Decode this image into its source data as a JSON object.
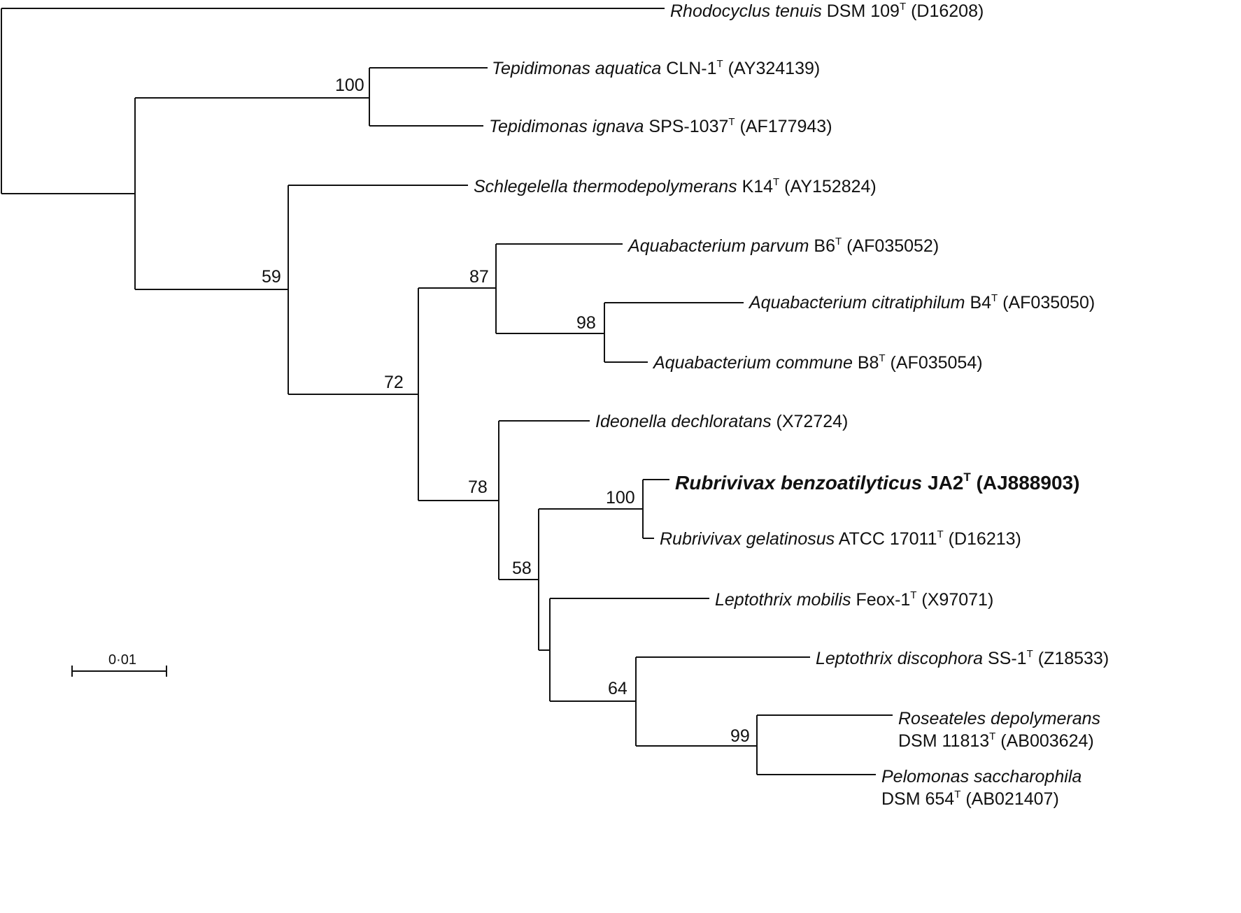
{
  "taxa": [
    {
      "id": "rhodocyclus",
      "species": "Rhodocyclus tenuis",
      "strain": "DSM 109",
      "sup": "T",
      "acc": "(D16208)"
    },
    {
      "id": "tep-aquatica",
      "species": "Tepidimonas aquatica",
      "strain": "CLN-1",
      "sup": "T",
      "acc": "(AY324139)"
    },
    {
      "id": "tep-ignava",
      "species": "Tepidimonas ignava",
      "strain": "SPS-1037",
      "sup": "T",
      "acc": "(AF177943)"
    },
    {
      "id": "schlegelella",
      "species": "Schlegelella thermodepolymerans",
      "strain": "K14",
      "sup": "T",
      "acc": "(AY152824)"
    },
    {
      "id": "aqua-parvum",
      "species": "Aquabacterium parvum",
      "strain": "B6",
      "sup": "T",
      "acc": "(AF035052)"
    },
    {
      "id": "aqua-citrati",
      "species": "Aquabacterium citratiphilum",
      "strain": "B4",
      "sup": "T",
      "acc": "(AF035050)"
    },
    {
      "id": "aqua-commune",
      "species": "Aquabacterium commune",
      "strain": "B8",
      "sup": "T",
      "acc": "(AF035054)"
    },
    {
      "id": "ideonella",
      "species": "Ideonella dechloratans",
      "strain": "",
      "sup": "",
      "acc": "(X72724)"
    },
    {
      "id": "rub-benzo",
      "species": "Rubrivivax benzoatilyticus",
      "strain": "JA2",
      "sup": "T",
      "acc": "(AJ888903)",
      "bold": true
    },
    {
      "id": "rub-gelat",
      "species": "Rubrivivax gelatinosus",
      "strain": "ATCC 17011",
      "sup": "T",
      "acc": "(D16213)"
    },
    {
      "id": "lep-mobilis",
      "species": "Leptothrix mobilis",
      "strain": "Feox-1",
      "sup": "T",
      "acc": "(X97071)"
    },
    {
      "id": "lep-disco",
      "species": "Leptothrix discophora",
      "strain": "SS-1",
      "sup": "T",
      "acc": "(Z18533)"
    },
    {
      "id": "roseateles",
      "species": "Roseateles depolymerans",
      "strain": "DSM 11813",
      "sup": "T",
      "acc": "(AB003624)"
    },
    {
      "id": "pelomonas",
      "species": "Pelomonas saccharophila",
      "strain": "DSM 654",
      "sup": "T",
      "acc": "(AB021407)"
    }
  ],
  "bootstrap": [
    "100",
    "59",
    "87",
    "98",
    "72",
    "78",
    "100",
    "58",
    "64",
    "99"
  ],
  "scale_bar": {
    "label": "0·01"
  }
}
